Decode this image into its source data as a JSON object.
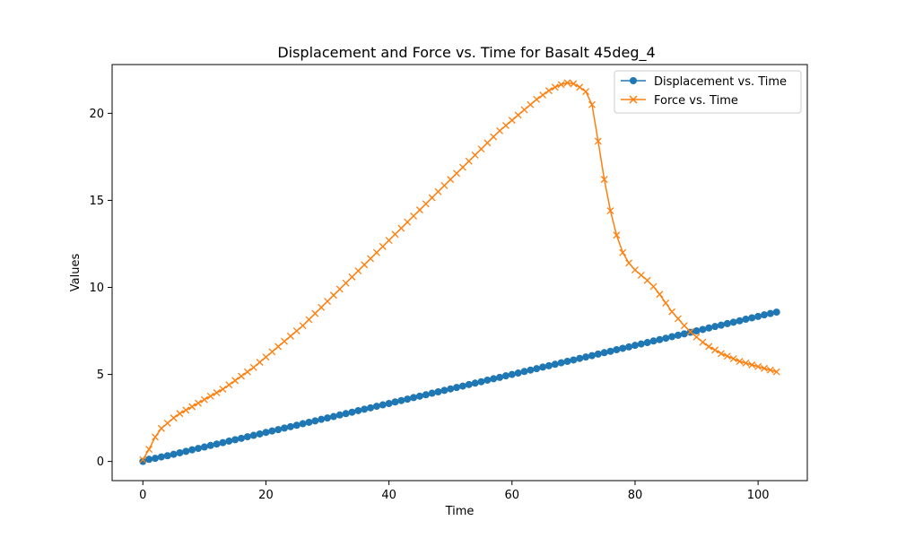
{
  "chart_data": {
    "type": "line",
    "title": "Displacement and Force vs. Time for Basalt 45deg_4",
    "xlabel": "Time",
    "ylabel": "Values",
    "xlim": [
      -5,
      108
    ],
    "ylim": [
      -1.1,
      22.8
    ],
    "x_ticks": [
      0,
      20,
      40,
      60,
      80,
      100
    ],
    "y_ticks": [
      0,
      5,
      10,
      15,
      20
    ],
    "grid": false,
    "legend_position": "top-right",
    "series": [
      {
        "name": "Displacement vs. Time",
        "color": "#1f77b4",
        "marker": "circle",
        "x_start": 0,
        "x_step": 1,
        "values": [
          0.0,
          0.12,
          0.18,
          0.26,
          0.33,
          0.41,
          0.5,
          0.58,
          0.67,
          0.75,
          0.83,
          0.92,
          1.0,
          1.08,
          1.17,
          1.25,
          1.33,
          1.42,
          1.5,
          1.58,
          1.67,
          1.75,
          1.83,
          1.92,
          2.0,
          2.08,
          2.17,
          2.25,
          2.33,
          2.42,
          2.5,
          2.58,
          2.67,
          2.75,
          2.83,
          2.92,
          3.0,
          3.08,
          3.17,
          3.25,
          3.33,
          3.42,
          3.5,
          3.58,
          3.67,
          3.75,
          3.83,
          3.92,
          4.0,
          4.08,
          4.17,
          4.25,
          4.33,
          4.42,
          4.5,
          4.58,
          4.67,
          4.75,
          4.83,
          4.92,
          5.0,
          5.08,
          5.17,
          5.25,
          5.33,
          5.42,
          5.5,
          5.58,
          5.67,
          5.75,
          5.83,
          5.92,
          6.0,
          6.08,
          6.17,
          6.25,
          6.33,
          6.42,
          6.5,
          6.58,
          6.67,
          6.75,
          6.83,
          6.92,
          7.0,
          7.08,
          7.17,
          7.25,
          7.33,
          7.42,
          7.5,
          7.58,
          7.67,
          7.75,
          7.83,
          7.92,
          8.0,
          8.08,
          8.17,
          8.25,
          8.33,
          8.42,
          8.5,
          8.58
        ]
      },
      {
        "name": "Force vs. Time",
        "color": "#ff7f0e",
        "marker": "x",
        "x_start": 0,
        "x_step": 1,
        "values": [
          0.1,
          0.7,
          1.4,
          1.9,
          2.2,
          2.5,
          2.75,
          2.95,
          3.15,
          3.35,
          3.55,
          3.75,
          3.95,
          4.15,
          4.4,
          4.65,
          4.9,
          5.15,
          5.4,
          5.7,
          6.0,
          6.3,
          6.6,
          6.9,
          7.2,
          7.5,
          7.8,
          8.15,
          8.5,
          8.85,
          9.2,
          9.55,
          9.9,
          10.25,
          10.6,
          10.95,
          11.3,
          11.65,
          12.0,
          12.35,
          12.7,
          13.05,
          13.4,
          13.75,
          14.1,
          14.45,
          14.8,
          15.15,
          15.5,
          15.85,
          16.2,
          16.55,
          16.9,
          17.25,
          17.6,
          17.95,
          18.3,
          18.65,
          19.0,
          19.3,
          19.6,
          19.9,
          20.2,
          20.5,
          20.8,
          21.05,
          21.3,
          21.5,
          21.65,
          21.75,
          21.7,
          21.5,
          21.25,
          20.5,
          18.4,
          16.2,
          14.4,
          13.0,
          12.0,
          11.4,
          11.0,
          10.7,
          10.4,
          10.05,
          9.6,
          9.1,
          8.6,
          8.2,
          7.8,
          7.45,
          7.15,
          6.85,
          6.6,
          6.4,
          6.2,
          6.05,
          5.9,
          5.75,
          5.65,
          5.55,
          5.45,
          5.35,
          5.25,
          5.15
        ]
      }
    ]
  }
}
